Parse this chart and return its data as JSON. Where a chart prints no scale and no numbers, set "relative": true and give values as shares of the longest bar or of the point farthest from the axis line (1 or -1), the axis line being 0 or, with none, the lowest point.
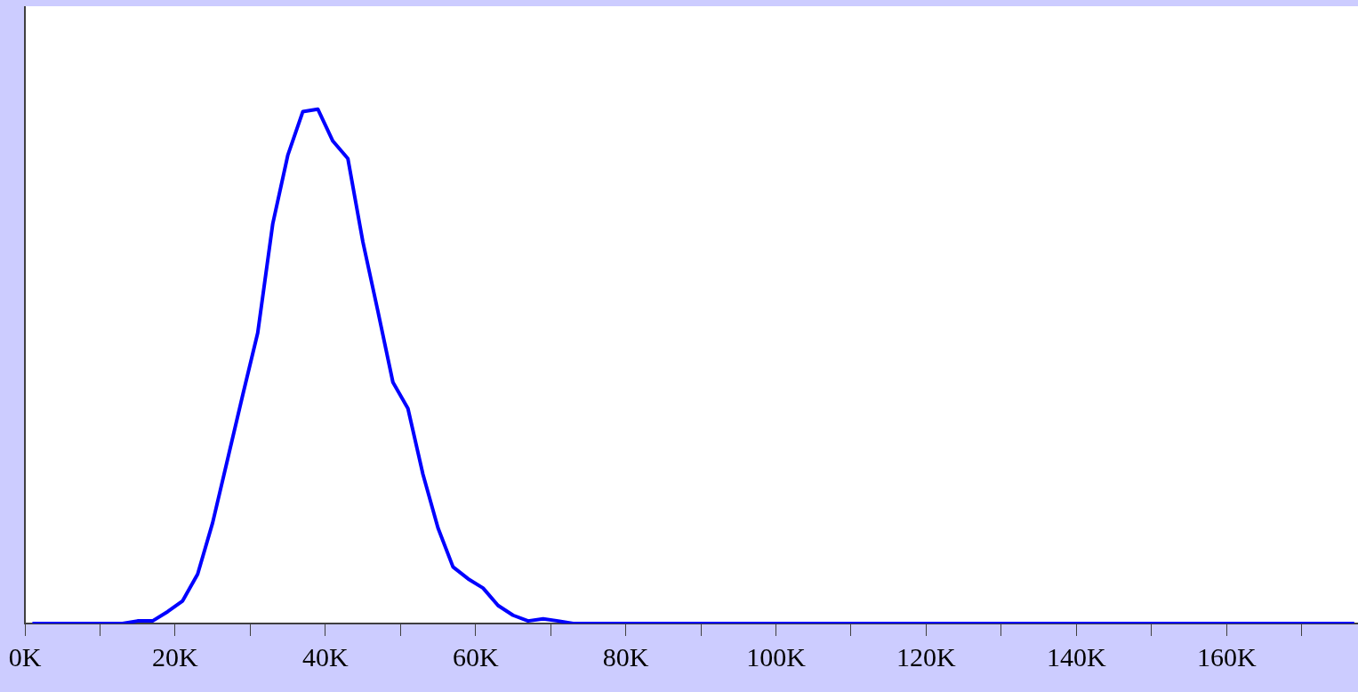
{
  "chart_data": {
    "type": "line",
    "relative": true,
    "tick_labels": "x",
    "grid": false,
    "legend": false,
    "marker": "none",
    "line_style": "solid",
    "xlim": [
      0,
      177.5
    ],
    "xticks": [
      {
        "value": 0,
        "label": "0K"
      },
      {
        "value": 10,
        "label": null
      },
      {
        "value": 20,
        "label": "20K"
      },
      {
        "value": 30,
        "label": null
      },
      {
        "value": 40,
        "label": "40K"
      },
      {
        "value": 50,
        "label": null
      },
      {
        "value": 60,
        "label": "60K"
      },
      {
        "value": 70,
        "label": null
      },
      {
        "value": 80,
        "label": "80K"
      },
      {
        "value": 90,
        "label": null
      },
      {
        "value": 100,
        "label": "100K"
      },
      {
        "value": 110,
        "label": null
      },
      {
        "value": 120,
        "label": "120K"
      },
      {
        "value": 130,
        "label": null
      },
      {
        "value": 140,
        "label": "140K"
      },
      {
        "value": 150,
        "label": null
      },
      {
        "value": 160,
        "label": "160K"
      },
      {
        "value": 170,
        "label": null
      }
    ],
    "series": [
      {
        "color": "#0000ff",
        "x": [
          1,
          13,
          15,
          17,
          19,
          21,
          23,
          25,
          27,
          29,
          31,
          33,
          35,
          37,
          39,
          41,
          43,
          45,
          47,
          49,
          51,
          53,
          55,
          57,
          59,
          61,
          63,
          65,
          67,
          69,
          71,
          73,
          177
        ],
        "values": [
          0,
          0,
          0.005,
          0.005,
          0.023,
          0.044,
          0.096,
          0.196,
          0.32,
          0.444,
          0.565,
          0.777,
          0.91,
          0.995,
          1,
          0.938,
          0.904,
          0.742,
          0.607,
          0.469,
          0.418,
          0.29,
          0.186,
          0.11,
          0.087,
          0.069,
          0.035,
          0.016,
          0.005,
          0.009,
          0.005,
          0,
          0
        ]
      }
    ]
  }
}
